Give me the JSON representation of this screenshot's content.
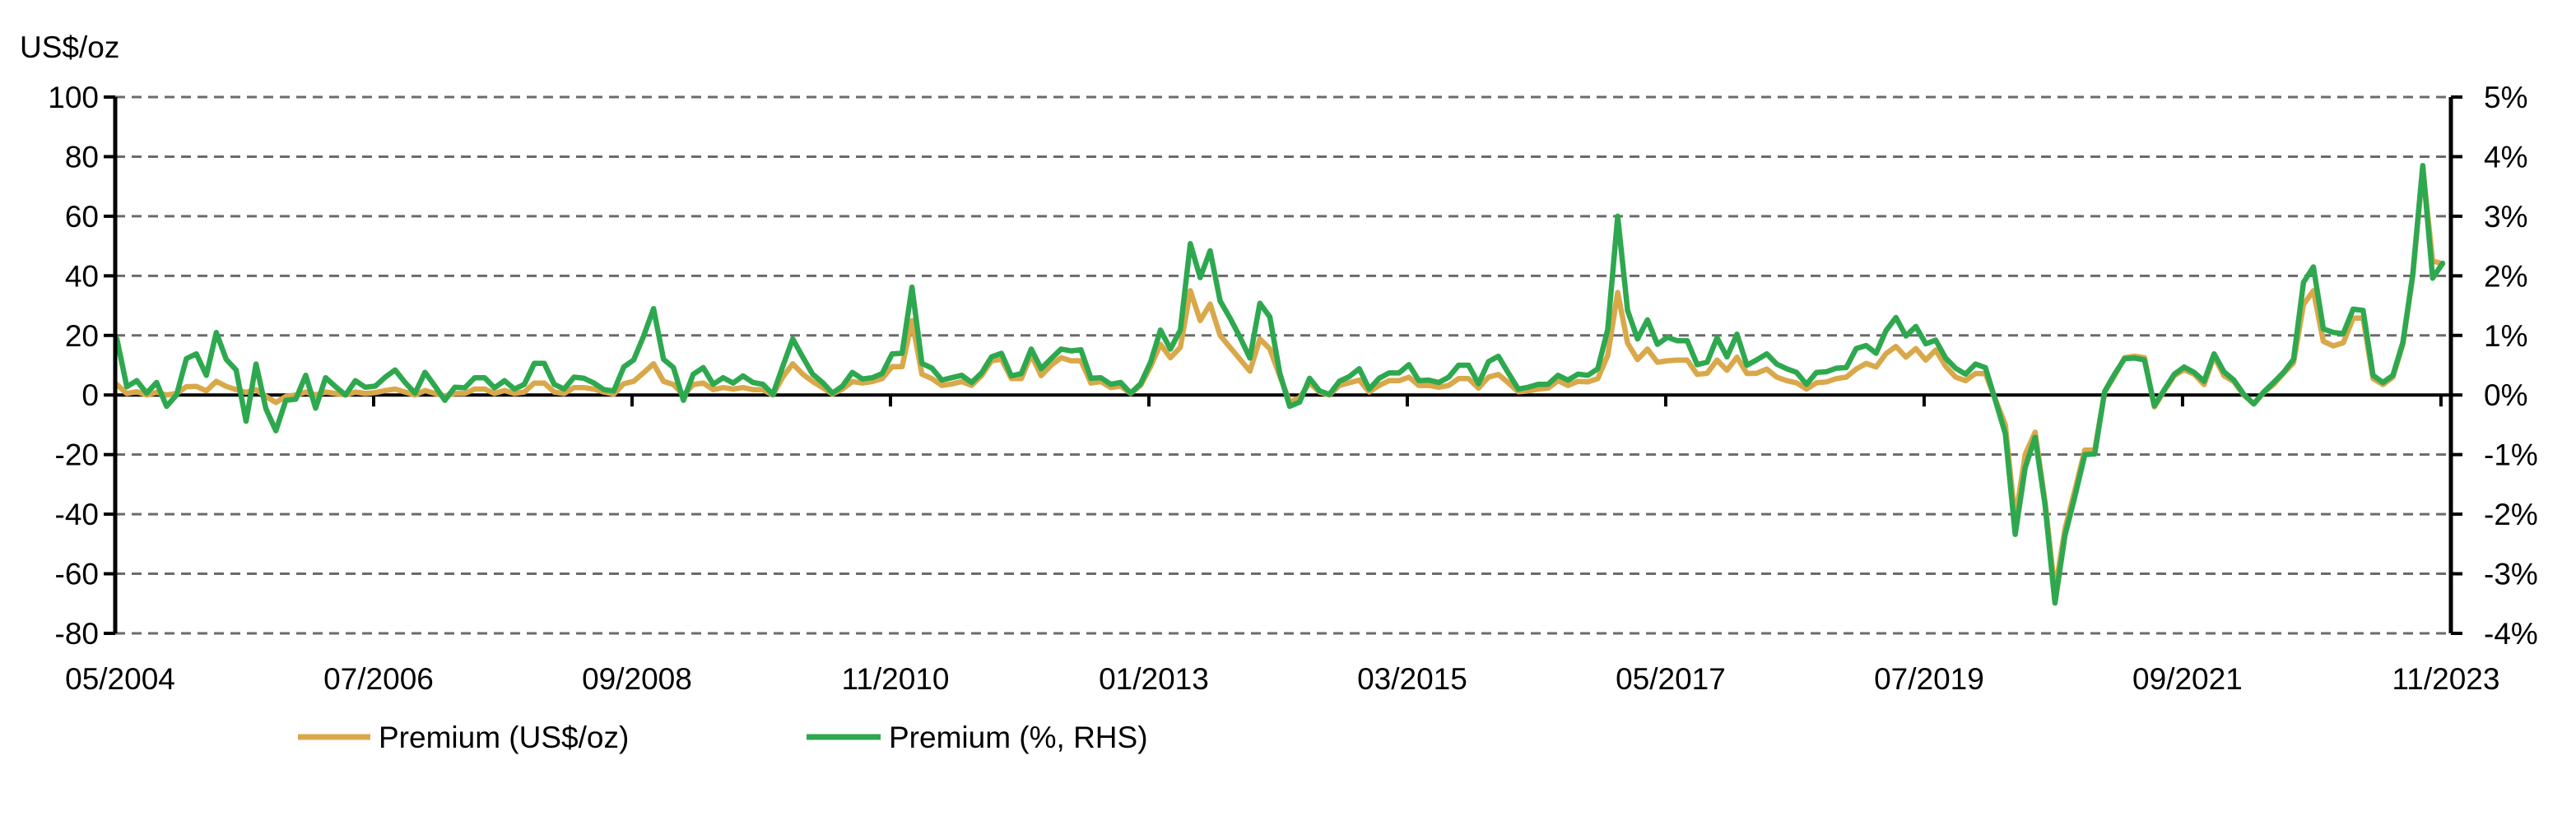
{
  "chart_data": {
    "type": "line",
    "title": "",
    "left_axis": {
      "unit_label": "US$/oz",
      "range": [
        -80,
        100
      ],
      "ticks": [
        "100",
        "80",
        "60",
        "40",
        "20",
        "0",
        "-20",
        "-40",
        "-60",
        "-80"
      ],
      "tick_values": [
        100,
        80,
        60,
        40,
        20,
        0,
        -20,
        -40,
        -60,
        -80
      ]
    },
    "right_axis": {
      "range": [
        -4,
        5
      ],
      "ticks": [
        "5%",
        "4%",
        "3%",
        "2%",
        "1%",
        "0%",
        "-1%",
        "-2%",
        "-3%",
        "-4%"
      ],
      "tick_values": [
        5,
        4,
        3,
        2,
        1,
        0,
        -1,
        -2,
        -3,
        -4
      ]
    },
    "x_axis": {
      "frequency": "monthly",
      "tick_labels": [
        "05/2004",
        "07/2006",
        "09/2008",
        "11/2010",
        "01/2013",
        "03/2015",
        "05/2017",
        "07/2019",
        "09/2021",
        "11/2023"
      ]
    },
    "grid": true,
    "legend_position": "bottom",
    "series": [
      {
        "name": "Premium (US$/oz)",
        "axis": "left",
        "color": "#D9A84A",
        "values": [
          3.5,
          0.5,
          1.1,
          0,
          0.9,
          0,
          0.5,
          2.8,
          2.9,
          1.4,
          4.6,
          2.9,
          1.8,
          0.9,
          1.8,
          -0.5,
          -2.5,
          -0.5,
          0,
          1,
          0,
          1,
          0.5,
          0,
          1,
          0.5,
          0.8,
          1.5,
          2,
          1,
          0,
          1.5,
          0.5,
          -0.3,
          0.5,
          0.5,
          2,
          2,
          0.5,
          1.5,
          0.5,
          1,
          4,
          4,
          1,
          0.5,
          2.5,
          2.5,
          2,
          1,
          0.3,
          3.8,
          4.6,
          7.5,
          10.5,
          4.6,
          3.5,
          0,
          3.5,
          4,
          1.8,
          2.5,
          2,
          2.5,
          1.8,
          1.8,
          0,
          6,
          10.5,
          7,
          4.5,
          2.5,
          0.3,
          2,
          4.5,
          4,
          4.5,
          5.5,
          9.5,
          9.5,
          25,
          7,
          5.5,
          3.2,
          3.7,
          4.5,
          3.2,
          6.5,
          11.5,
          12,
          5.5,
          5.5,
          13.5,
          6.5,
          10,
          12.5,
          11.5,
          11.5,
          4,
          4.5,
          2.5,
          3,
          0.5,
          3.2,
          9.5,
          17,
          12.5,
          16,
          35,
          25,
          30.5,
          20,
          16,
          12,
          8,
          18.8,
          15.5,
          6.4,
          -2.3,
          -1,
          4.1,
          1,
          0,
          3.2,
          4.1,
          5,
          1,
          3.2,
          4.8,
          4.8,
          6,
          3.2,
          3.2,
          2.6,
          3.2,
          5.5,
          5.5,
          2.3,
          6,
          6.9,
          4.1,
          1.1,
          1.4,
          2,
          2.3,
          4.8,
          3.2,
          4.6,
          4.4,
          5.5,
          13.3,
          34.4,
          17.4,
          11.9,
          15.4,
          11,
          11.5,
          11.7,
          11.7,
          6.9,
          7.3,
          11.7,
          8.3,
          12.7,
          7.2,
          7.3,
          8.7,
          6,
          4.8,
          4.1,
          2,
          4.1,
          4.4,
          5.5,
          6,
          8.7,
          10.6,
          9.4,
          13.9,
          16.3,
          12.7,
          15.6,
          11.7,
          15.1,
          9.6,
          6,
          4.8,
          7.2,
          7.2,
          -1.5,
          -10,
          -42,
          -20,
          -12.5,
          -36,
          -66,
          -45,
          -32,
          -18.5,
          -18.5,
          1,
          6.5,
          12.5,
          13,
          12.5,
          -4,
          1.5,
          6.5,
          8.5,
          7,
          3.5,
          13,
          6.5,
          4.5,
          0,
          -3,
          0.8,
          3.5,
          7.3,
          10.8,
          30.4,
          35,
          18,
          16.5,
          17.5,
          25.8,
          25.8,
          5.5,
          3.5,
          6,
          17,
          40,
          76,
          45,
          44
        ]
      },
      {
        "name": "Premium (%, RHS)",
        "axis": "right",
        "color": "#2EA84F",
        "values": [
          0.94,
          0.14,
          0.24,
          0.03,
          0.21,
          -0.19,
          0.0,
          0.61,
          0.69,
          0.33,
          1.05,
          0.6,
          0.42,
          -0.44,
          0.52,
          -0.23,
          -0.6,
          -0.09,
          -0.07,
          0.33,
          -0.22,
          0.29,
          0.14,
          0.0,
          0.24,
          0.13,
          0.15,
          0.3,
          0.42,
          0.21,
          0.03,
          0.38,
          0.15,
          -0.09,
          0.13,
          0.12,
          0.29,
          0.29,
          0.12,
          0.24,
          0.1,
          0.18,
          0.53,
          0.53,
          0.18,
          0.1,
          0.3,
          0.28,
          0.2,
          0.09,
          0.07,
          0.47,
          0.59,
          0.99,
          1.45,
          0.6,
          0.46,
          -0.09,
          0.35,
          0.46,
          0.18,
          0.29,
          0.2,
          0.32,
          0.21,
          0.18,
          0.01,
          0.48,
          0.94,
          0.64,
          0.35,
          0.21,
          0.03,
          0.15,
          0.38,
          0.27,
          0.29,
          0.36,
          0.69,
          0.7,
          1.81,
          0.53,
          0.45,
          0.25,
          0.29,
          0.33,
          0.21,
          0.37,
          0.64,
          0.7,
          0.32,
          0.36,
          0.77,
          0.44,
          0.61,
          0.77,
          0.74,
          0.76,
          0.28,
          0.29,
          0.18,
          0.21,
          0.03,
          0.19,
          0.55,
          1.09,
          0.77,
          1.09,
          2.54,
          1.97,
          2.42,
          1.58,
          1.29,
          0.97,
          0.62,
          1.54,
          1.31,
          0.37,
          -0.19,
          -0.12,
          0.28,
          0.07,
          0.01,
          0.23,
          0.31,
          0.44,
          0.1,
          0.28,
          0.37,
          0.37,
          0.51,
          0.24,
          0.25,
          0.21,
          0.3,
          0.5,
          0.5,
          0.19,
          0.56,
          0.65,
          0.37,
          0.1,
          0.13,
          0.18,
          0.18,
          0.33,
          0.25,
          0.35,
          0.33,
          0.44,
          1.1,
          3.0,
          1.42,
          0.94,
          1.26,
          0.85,
          0.97,
          0.91,
          0.91,
          0.51,
          0.55,
          0.96,
          0.64,
          1.02,
          0.5,
          0.59,
          0.69,
          0.52,
          0.44,
          0.38,
          0.18,
          0.38,
          0.39,
          0.45,
          0.46,
          0.78,
          0.83,
          0.7,
          1.08,
          1.3,
          0.99,
          1.15,
          0.86,
          0.92,
          0.62,
          0.45,
          0.35,
          0.52,
          0.46,
          -0.09,
          -0.65,
          -2.34,
          -1.22,
          -0.71,
          -1.85,
          -3.49,
          -2.36,
          -1.7,
          -1.0,
          -0.99,
          0.06,
          0.35,
          0.61,
          0.62,
          0.59,
          -0.18,
          0.09,
          0.35,
          0.47,
          0.38,
          0.23,
          0.69,
          0.39,
          0.25,
          0.01,
          -0.15,
          0.05,
          0.21,
          0.38,
          0.6,
          1.89,
          2.15,
          1.11,
          1.05,
          1.03,
          1.44,
          1.42,
          0.33,
          0.21,
          0.33,
          0.88,
          2.03,
          3.85,
          1.96,
          2.21
        ]
      }
    ]
  }
}
